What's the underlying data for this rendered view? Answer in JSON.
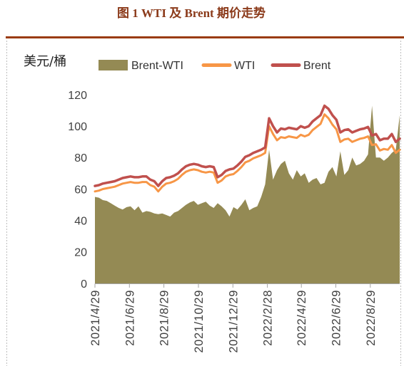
{
  "colors": {
    "title": "#8B3A1A",
    "rule": "#9A3B0F",
    "axis": "#A6A6A6"
  },
  "chart_data": {
    "type": "line",
    "title": "图 1 WTI 及 Brent 期价走势",
    "ylabel": "美元/桶",
    "ylim": [
      0,
      120
    ],
    "xlim": [
      "2021/4/29",
      "2022/10/20"
    ],
    "y_ticks": [
      0,
      20,
      40,
      60,
      80,
      100,
      120
    ],
    "x_tick_labels": [
      "2021/4/29",
      "2021/6/29",
      "2021/8/29",
      "2021/10/29",
      "2021/12/29",
      "2022/2/28",
      "2022/4/29",
      "2022/6/29",
      "2022/8/29"
    ],
    "grid": false,
    "legend_position": "top",
    "x": [
      "2021/4/29",
      "2021/5/6",
      "2021/5/13",
      "2021/5/20",
      "2021/5/27",
      "2021/6/3",
      "2021/6/10",
      "2021/6/17",
      "2021/6/24",
      "2021/7/1",
      "2021/7/8",
      "2021/7/15",
      "2021/7/22",
      "2021/7/29",
      "2021/8/5",
      "2021/8/12",
      "2021/8/19",
      "2021/8/26",
      "2021/9/2",
      "2021/9/9",
      "2021/9/16",
      "2021/9/23",
      "2021/9/30",
      "2021/10/7",
      "2021/10/14",
      "2021/10/21",
      "2021/10/28",
      "2021/11/4",
      "2021/11/11",
      "2021/11/18",
      "2021/11/25",
      "2021/12/2",
      "2021/12/9",
      "2021/12/16",
      "2021/12/23",
      "2021/12/30",
      "2022/1/6",
      "2022/1/13",
      "2022/1/20",
      "2022/1/27",
      "2022/2/3",
      "2022/2/10",
      "2022/2/17",
      "2022/2/24",
      "2022/3/3",
      "2022/3/10",
      "2022/3/17",
      "2022/3/24",
      "2022/3/31",
      "2022/4/7",
      "2022/4/14",
      "2022/4/21",
      "2022/4/28",
      "2022/5/5",
      "2022/5/12",
      "2022/5/19",
      "2022/5/26",
      "2022/6/2",
      "2022/6/9",
      "2022/6/16",
      "2022/6/23",
      "2022/6/30",
      "2022/7/7",
      "2022/7/14",
      "2022/7/21",
      "2022/7/28",
      "2022/8/4",
      "2022/8/11",
      "2022/8/18",
      "2022/8/25",
      "2022/9/1",
      "2022/9/8",
      "2022/9/15",
      "2022/9/22",
      "2022/9/29",
      "2022/10/6",
      "2022/10/13",
      "2022/10/20"
    ],
    "series": [
      {
        "name": "Brent-WTI",
        "type": "area",
        "color": "#948A54",
        "values": [
          55,
          54.5,
          53,
          52.5,
          51,
          49.5,
          48,
          47,
          48.5,
          49,
          46.5,
          49,
          45,
          46,
          45.5,
          44.5,
          44,
          44.5,
          43.5,
          42.5,
          45,
          46,
          48,
          50,
          51.5,
          52.5,
          50,
          51,
          52,
          49.5,
          48,
          51,
          49,
          46.5,
          42.5,
          48.5,
          47,
          50,
          53.5,
          46.5,
          48,
          49,
          55,
          63,
          85,
          66,
          72,
          76,
          78,
          70,
          66,
          72,
          68,
          70,
          64,
          66,
          67,
          63,
          64,
          71,
          74,
          68,
          84,
          69,
          72,
          80,
          75,
          76,
          78,
          82,
          113,
          80,
          80,
          78,
          80,
          83,
          85,
          107
        ]
      },
      {
        "name": "WTI",
        "type": "line",
        "color": "#F79646",
        "values": [
          58.5,
          59,
          60,
          60.5,
          61,
          61.5,
          62.5,
          63.5,
          64,
          64.5,
          64,
          64,
          64.5,
          64.5,
          62.5,
          61.5,
          58.5,
          61.5,
          63.5,
          64,
          65,
          66.5,
          69,
          71,
          72,
          72.5,
          72,
          71,
          70.5,
          71,
          70.5,
          64,
          65.5,
          68,
          69,
          69.5,
          71.5,
          74,
          77,
          78,
          79.5,
          80.5,
          81.5,
          83,
          100,
          95,
          91,
          93,
          92.5,
          93.5,
          93,
          92.5,
          94.5,
          93.5,
          94.5,
          97.5,
          99.5,
          101.5,
          107.5,
          105,
          101,
          98,
          90,
          91.5,
          92,
          90,
          91,
          92,
          92.5,
          93.5,
          88,
          88.5,
          84.5,
          85.5,
          85,
          88,
          83,
          85
        ]
      },
      {
        "name": "Brent",
        "type": "line",
        "color": "#C0504D",
        "values": [
          62,
          62.5,
          63.5,
          64,
          64.5,
          65,
          66,
          67,
          67.5,
          68,
          67.5,
          67.5,
          68,
          68,
          66,
          65,
          62,
          65,
          67,
          67.5,
          68.5,
          70,
          72.5,
          74.5,
          75.5,
          76,
          75.5,
          74.5,
          74,
          74.5,
          74,
          67.5,
          69,
          71.5,
          72.5,
          73,
          75,
          77.5,
          80.5,
          81.5,
          83,
          84,
          85,
          86.5,
          105,
          100,
          96,
          98.5,
          98,
          99,
          98.5,
          98,
          100,
          99,
          100,
          103,
          105,
          107,
          113,
          111,
          107,
          104,
          96,
          97.5,
          98,
          96,
          97,
          98,
          98.5,
          99.5,
          94,
          95,
          91,
          92,
          92,
          95,
          90,
          92
        ]
      }
    ]
  }
}
